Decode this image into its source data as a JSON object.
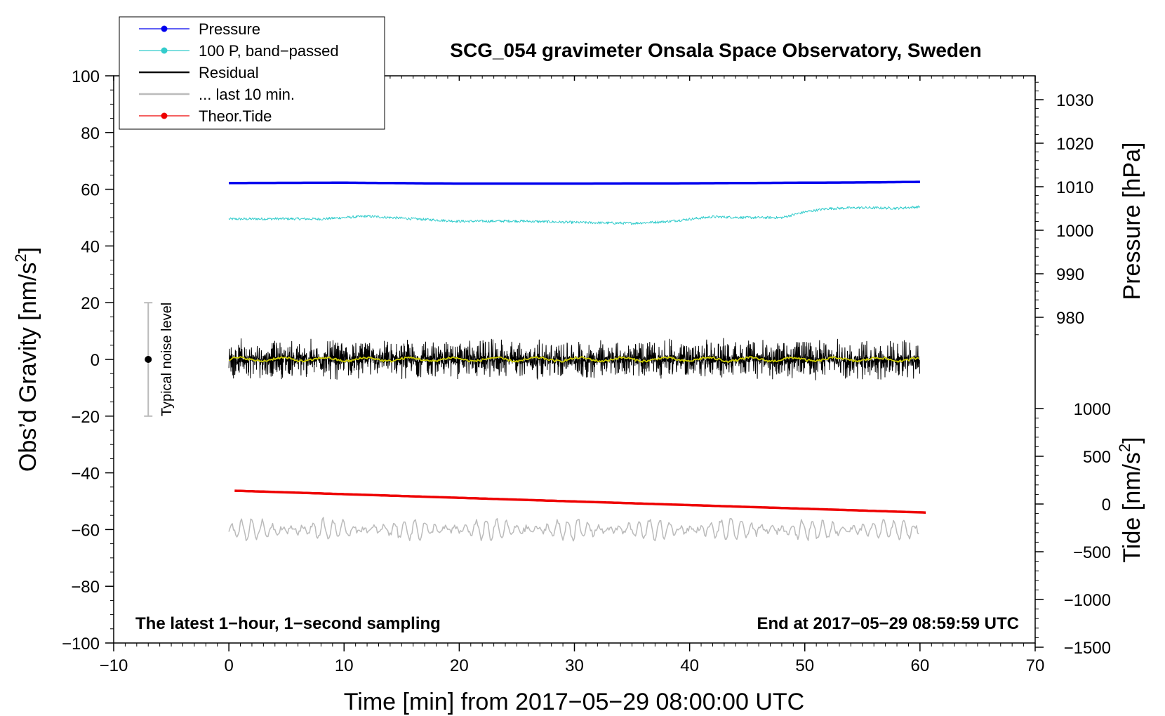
{
  "chart_data": {
    "type": "line",
    "title": "SCG_054 gravimeter Onsala Space Observatory, Sweden",
    "xlabel": "Time [min] from 2017−05−29 08:00:00 UTC",
    "ylabel_left": "Obs’d Gravity [nm/s²]",
    "ylabel_left_main": "Obs’d Gravity [nm/s",
    "ylabel_left_sup": "2",
    "ylabel_left_end": "]",
    "ylabel_right_pressure": "Pressure [hPa]",
    "ylabel_right_tide_main": "Tide [nm/s",
    "ylabel_right_tide_sup": "2",
    "ylabel_right_tide_end": "]",
    "xlim": [
      -10,
      70
    ],
    "ylim": [
      -100,
      100
    ],
    "pressure_lim": [
      975,
      1035
    ],
    "tide_lim": [
      -1500,
      1500
    ],
    "x_ticks": [
      "−10",
      "0",
      "10",
      "20",
      "30",
      "40",
      "50",
      "60",
      "70"
    ],
    "x_tick_values": [
      -10,
      0,
      10,
      20,
      30,
      40,
      50,
      60,
      70
    ],
    "y_ticks": [
      "100",
      "80",
      "60",
      "40",
      "20",
      "0",
      "−20",
      "−40",
      "−60",
      "−80",
      "−100"
    ],
    "y_tick_values": [
      100,
      80,
      60,
      40,
      20,
      0,
      -20,
      -40,
      -60,
      -80,
      -100
    ],
    "pressure_ticks": [
      "1030",
      "1020",
      "1010",
      "1000",
      "990",
      "980"
    ],
    "pressure_tick_values": [
      1030,
      1020,
      1010,
      1000,
      990,
      980
    ],
    "tide_ticks": [
      "1000",
      "500",
      "0",
      "−500",
      "−1000",
      "−1500"
    ],
    "tide_tick_values": [
      1000,
      500,
      0,
      -500,
      -1000,
      -1500
    ],
    "notes": {
      "left": "The latest 1−hour, 1−second sampling",
      "right": "End at 2017−05−29 08:59:59 UTC"
    },
    "noise_bar": {
      "label": "Typical noise level",
      "x": -7,
      "center": 0,
      "low": -20,
      "high": 20
    },
    "legend": [
      {
        "name": "Pressure",
        "color": "#0000ee",
        "marker": true
      },
      {
        "name": "100 P, band−passed",
        "color": "#33cccc",
        "marker": true
      },
      {
        "name": "Residual",
        "color": "#000000",
        "marker": false
      },
      {
        "name": "... last 10 min.",
        "color": "#bbbbbb",
        "marker": false
      },
      {
        "name": "Theor.Tide",
        "color": "#ee0000",
        "marker": true
      }
    ],
    "series": [
      {
        "name": "Pressure",
        "color": "#0000ee",
        "axis": "gravity",
        "x": [
          0,
          10,
          20,
          30,
          40,
          50,
          55,
          60
        ],
        "y": [
          62.2,
          62.3,
          62.0,
          62.0,
          62.1,
          62.3,
          62.4,
          62.6
        ]
      },
      {
        "name": "100 P, band−passed",
        "color": "#33cccc",
        "axis": "gravity",
        "x": [
          0,
          5,
          8,
          12,
          15,
          20,
          25,
          30,
          35,
          38,
          42,
          45,
          48,
          50,
          52,
          55,
          58,
          60
        ],
        "y": [
          49.5,
          49.6,
          49.5,
          50.5,
          49.8,
          48.7,
          48.8,
          48.3,
          48.0,
          48.6,
          50.3,
          50.0,
          50.0,
          52.0,
          53.2,
          53.5,
          53.3,
          53.8
        ]
      },
      {
        "name": "Residual",
        "color": "#000000",
        "axis": "gravity",
        "x": [
          0,
          60
        ],
        "y": [
          0,
          0
        ],
        "noise_amplitude": 4.5
      },
      {
        "name": "Residual (smoothed)",
        "color": "#cccc00",
        "axis": "gravity",
        "x": [
          0,
          60
        ],
        "y": [
          0,
          0
        ]
      },
      {
        "name": "... last 10 min.",
        "color": "#bbbbbb",
        "axis": "gravity",
        "x": [
          0,
          60
        ],
        "y": [
          -60,
          -60
        ],
        "oscillation_amplitude": 3.5
      },
      {
        "name": "Theor.Tide",
        "color": "#ee0000",
        "axis": "gravity",
        "x": [
          0.5,
          60.5
        ],
        "y": [
          -46.3,
          -54.0
        ]
      }
    ]
  }
}
